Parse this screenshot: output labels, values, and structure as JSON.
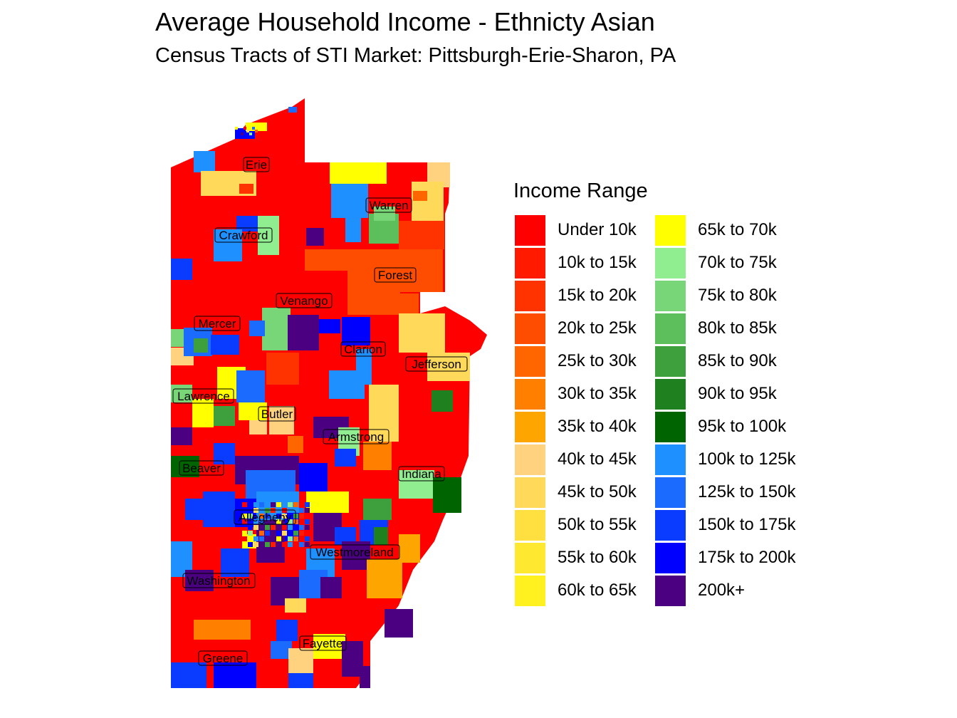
{
  "title": "Average Household Income - Ethnicty Asian",
  "subtitle": "Census Tracts of STI Market: Pittsburgh-Erie-Sharon, PA",
  "legend": {
    "title": "Income Range",
    "items": [
      {
        "label": "Under 10k",
        "color": "#FF0000"
      },
      {
        "label": "10k to 15k",
        "color": "#FF1A00"
      },
      {
        "label": "15k to 20k",
        "color": "#FF3300"
      },
      {
        "label": "20k to 25k",
        "color": "#FF4D00"
      },
      {
        "label": "25k to 30k",
        "color": "#FF6600"
      },
      {
        "label": "30k to 35k",
        "color": "#FF8000"
      },
      {
        "label": "35k to 40k",
        "color": "#FFA500"
      },
      {
        "label": "40k to 45k",
        "color": "#FFD27F"
      },
      {
        "label": "45k to 50k",
        "color": "#FFDA5A"
      },
      {
        "label": "50k to 55k",
        "color": "#FFE040"
      },
      {
        "label": "55k to 60k",
        "color": "#FFE830"
      },
      {
        "label": "60k to 65k",
        "color": "#FFF020"
      },
      {
        "label": "65k to 70k",
        "color": "#FFFF00"
      },
      {
        "label": "70k to 75k",
        "color": "#90EE90"
      },
      {
        "label": "75k to 80k",
        "color": "#78D678"
      },
      {
        "label": "80k to 85k",
        "color": "#5CBF5C"
      },
      {
        "label": "85k to 90k",
        "color": "#3DA03D"
      },
      {
        "label": "90k to 95k",
        "color": "#1E801E"
      },
      {
        "label": "95k to 100k",
        "color": "#006400"
      },
      {
        "label": "100k to 125k",
        "color": "#1E90FF"
      },
      {
        "label": "125k to 150k",
        "color": "#1C6BFF"
      },
      {
        "label": "150k to 175k",
        "color": "#0A3CFF"
      },
      {
        "label": "175k to 200k",
        "color": "#0000FF"
      },
      {
        "label": "200k+",
        "color": "#4B0082"
      }
    ]
  },
  "counties": [
    {
      "name": "Erie"
    },
    {
      "name": "Warren"
    },
    {
      "name": "Crawford"
    },
    {
      "name": "Forest"
    },
    {
      "name": "Venango"
    },
    {
      "name": "Mercer"
    },
    {
      "name": "Clarion"
    },
    {
      "name": "Jefferson"
    },
    {
      "name": "Lawrence"
    },
    {
      "name": "Butler"
    },
    {
      "name": "Armstrong"
    },
    {
      "name": "Beaver"
    },
    {
      "name": "Indiana"
    },
    {
      "name": "Allegheny"
    },
    {
      "name": "Westmoreland"
    },
    {
      "name": "Washington"
    },
    {
      "name": "Fayette"
    },
    {
      "name": "Greene"
    }
  ]
}
